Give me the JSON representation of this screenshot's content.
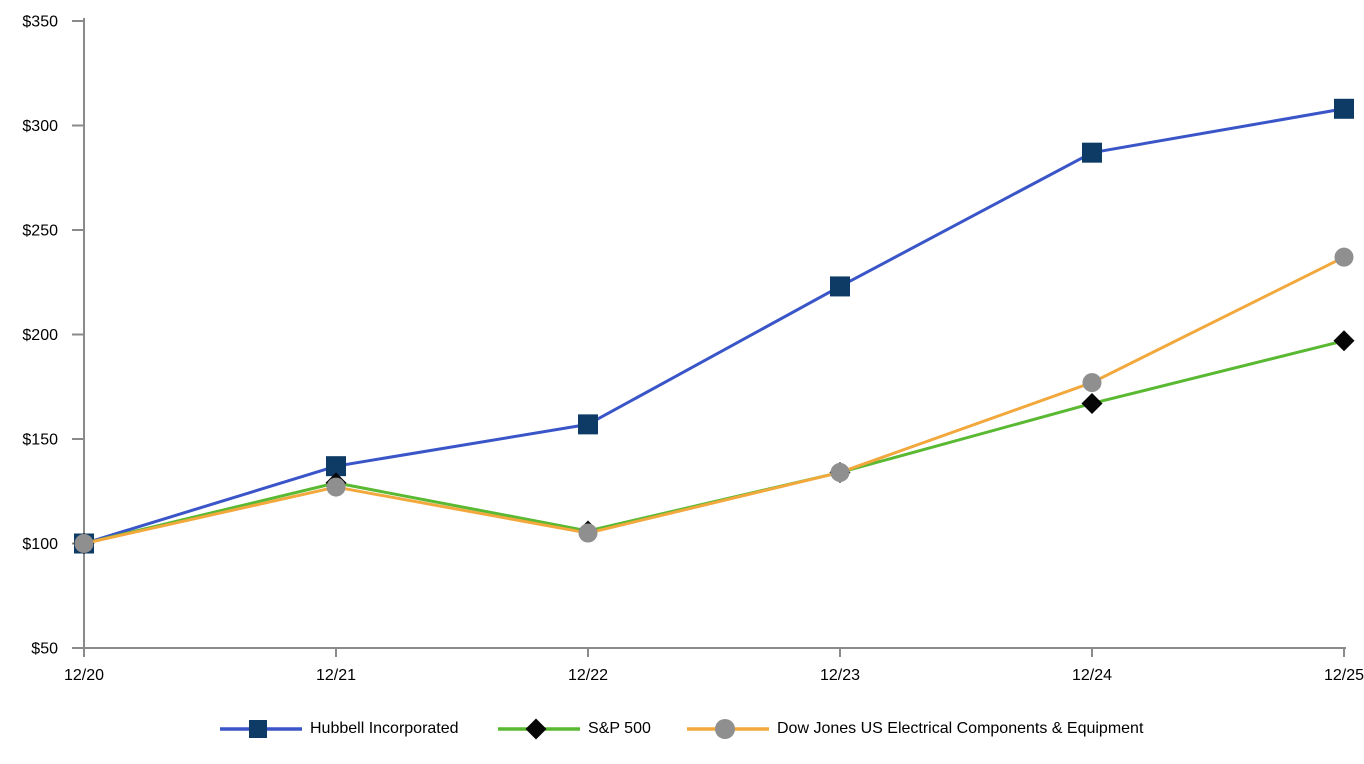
{
  "chart_data": {
    "type": "line",
    "title": "",
    "xlabel": "",
    "ylabel": "",
    "x_categories": [
      "12/20",
      "12/21",
      "12/22",
      "12/23",
      "12/24",
      "12/25"
    ],
    "y_ticks": [
      50,
      100,
      150,
      200,
      250,
      300,
      350
    ],
    "y_tick_labels": [
      "$50",
      "$100",
      "$150",
      "$200",
      "$250",
      "$300",
      "$350"
    ],
    "ylim": [
      50,
      350
    ],
    "grid": false,
    "legend_position": "bottom",
    "axis_color": "#8A8A8A",
    "text_color": "#000000",
    "series": [
      {
        "name": "Hubbell Incorporated",
        "line_color": "#3A55C8",
        "marker": "square",
        "marker_color": "#0D3B66",
        "values": [
          100,
          137,
          157,
          223,
          287,
          308
        ]
      },
      {
        "name": "S&P 500",
        "line_color": "#5AB932",
        "marker": "diamond",
        "marker_color": "#060606",
        "values": [
          100,
          129,
          106,
          134,
          167,
          197
        ]
      },
      {
        "name": "Dow Jones US Electrical Components & Equipment",
        "line_color": "#F2A83C",
        "marker": "circle",
        "marker_color": "#8F8F8F",
        "values": [
          100,
          127,
          105,
          134,
          177,
          237
        ]
      }
    ]
  }
}
